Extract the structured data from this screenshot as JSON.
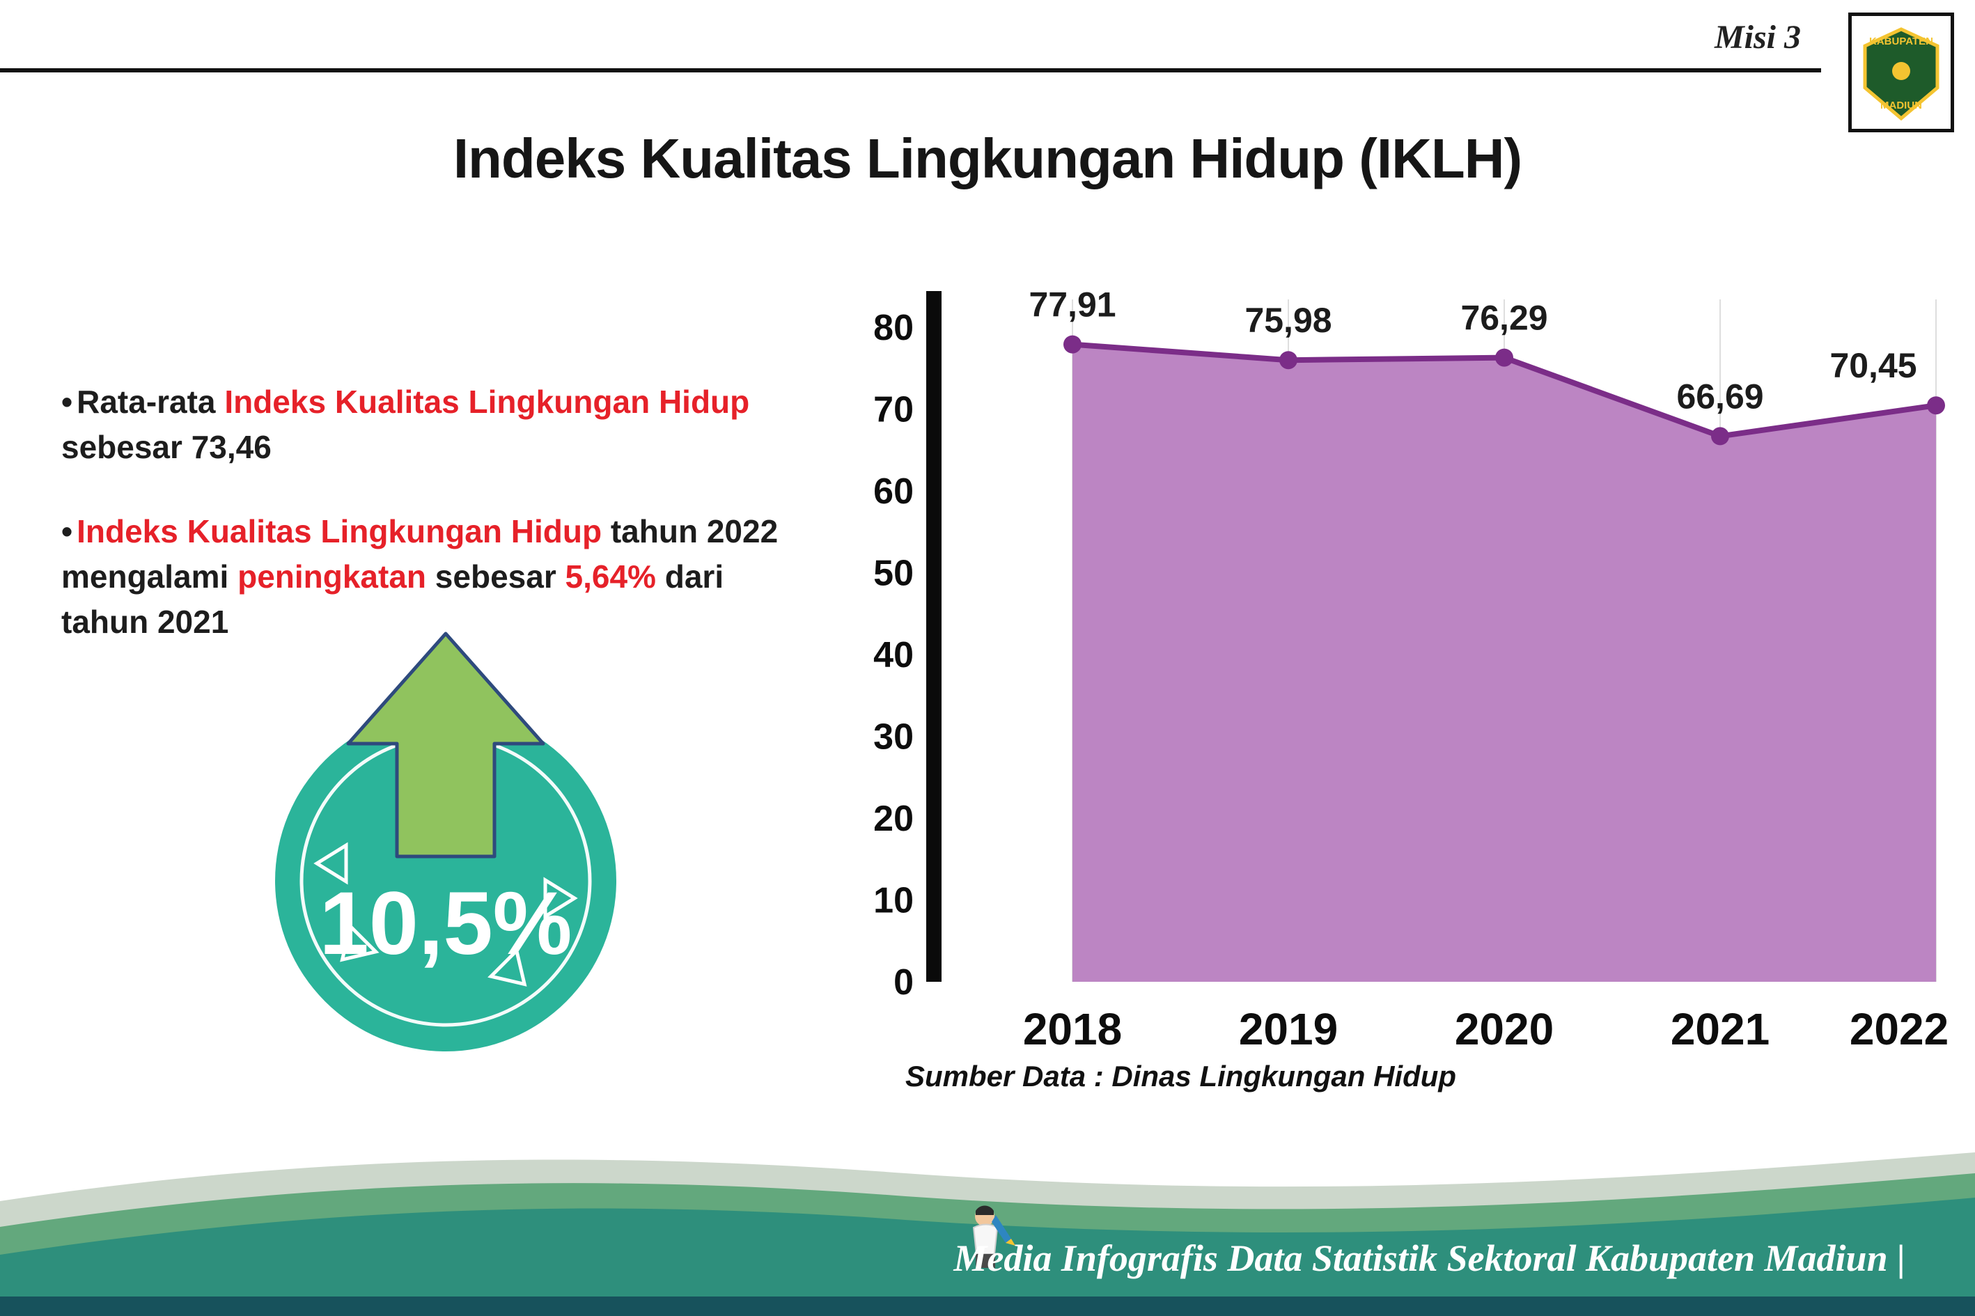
{
  "header": {
    "misi_label": "Misi 3",
    "title": "Indeks Kualitas Lingkungan Hidup (IKLH)",
    "logo_top": "KABUPATEN",
    "logo_bottom": "MADIUN"
  },
  "insights": {
    "bullet_char": "•",
    "bullet1": {
      "segments": [
        {
          "text": "Rata-rata "
        },
        {
          "text": "Indeks Kualitas Lingkungan Hidup"
        },
        {
          "text": " sebesar 73,46"
        }
      ]
    },
    "bullet2": {
      "segments": [
        {
          "text": "Indeks Kualitas Lingkungan Hidup"
        },
        {
          "text": " tahun 2022 mengalami "
        },
        {
          "text": "peningkatan"
        },
        {
          "text": " sebesar "
        },
        {
          "text": "5,64%"
        },
        {
          "text": " dari tahun 2021"
        }
      ]
    }
  },
  "badge": {
    "value": "10,5%"
  },
  "chart_data": {
    "type": "area",
    "categories": [
      "2018",
      "2019",
      "2020",
      "2021",
      "2022"
    ],
    "values": [
      77.91,
      75.98,
      76.29,
      66.69,
      70.45
    ],
    "value_labels": [
      "77,91",
      "75,98",
      "76,29",
      "66,69",
      "70,45"
    ],
    "title": "",
    "xlabel": "",
    "ylabel": "",
    "ylim": [
      0,
      80
    ],
    "yticks": [
      0,
      10,
      20,
      30,
      40,
      50,
      60,
      70,
      80
    ],
    "grid": "vertical",
    "legend": "none",
    "source": "Sumber Data : Dinas Lingkungan Hidup",
    "colors": {
      "area_fill": "#bc85c3",
      "line": "#7b2d88",
      "marker": "#7b2d88",
      "axis": "#0a0a0a",
      "label": "#1c1c1c"
    }
  },
  "footer": {
    "credit": "Media Infografis Data Statistik Sektoral Kabupaten Madiun |"
  }
}
